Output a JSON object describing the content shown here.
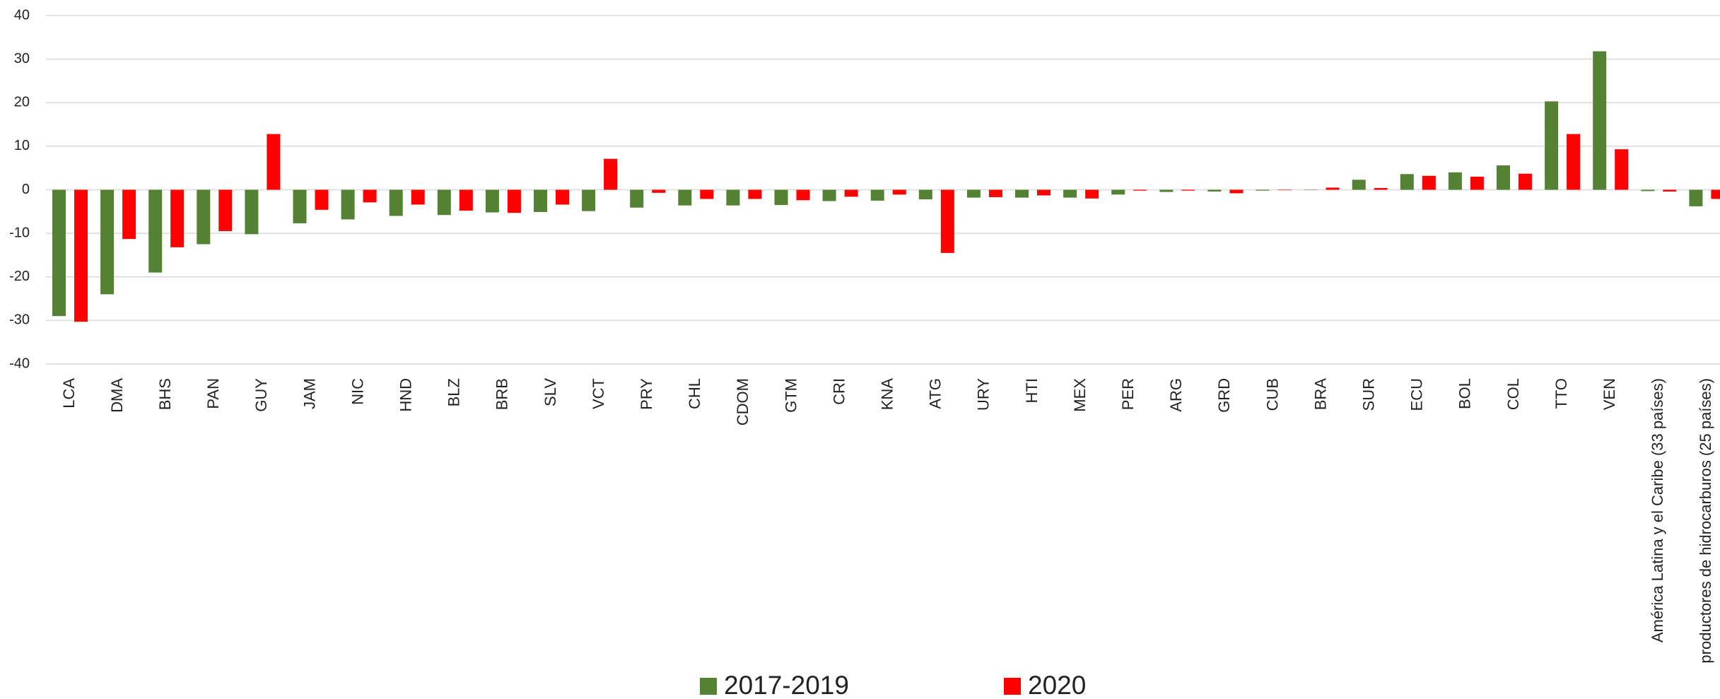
{
  "chart_data": {
    "type": "bar",
    "categories": [
      "LCA",
      "DMA",
      "BHS",
      "PAN",
      "GUY",
      "JAM",
      "NIC",
      "HND",
      "BLZ",
      "BRB",
      "SLV",
      "VCT",
      "PRY",
      "CHL",
      "CDOM",
      "GTM",
      "CRI",
      "KNA",
      "ATG",
      "URY",
      "HTI",
      "MEX",
      "PER",
      "ARG",
      "GRD",
      "CUB",
      "BRA",
      "SUR",
      "ECU",
      "BOL",
      "COL",
      "TTO",
      "VEN",
      "América Latina y el Caribe (33 países)",
      "productores de hidrocarburos (25 países)"
    ],
    "series": [
      {
        "name": "2017-2019",
        "color": "#548235",
        "values": [
          -29,
          -24,
          -19,
          -12.5,
          -10.2,
          -7.7,
          -6.8,
          -6,
          -5.8,
          -5.2,
          -5.1,
          -4.9,
          -4.1,
          -3.6,
          -3.6,
          -3.5,
          -2.6,
          -2.5,
          -2.2,
          -1.8,
          -1.8,
          -1.8,
          -1.1,
          -0.5,
          -0.4,
          -0.2,
          0,
          2.3,
          3.6,
          4,
          5.6,
          20.3,
          31.8,
          -0.3,
          -3.8
        ]
      },
      {
        "name": "2020",
        "color": "#ff0000",
        "values": [
          -30.3,
          -11.3,
          -13.2,
          -9.5,
          12.8,
          -4.6,
          -2.9,
          -3.4,
          -4.8,
          -5.3,
          -3.4,
          7.1,
          -0.7,
          -2.1,
          -2.1,
          -2.4,
          -1.6,
          -1.1,
          -14.5,
          -1.7,
          -1.3,
          -2,
          -0.2,
          -0.2,
          -0.8,
          -0.1,
          0.5,
          0.4,
          3.2,
          3,
          3.7,
          12.8,
          9.3,
          -0.4,
          -2.1
        ]
      }
    ],
    "ylim": [
      -40,
      40
    ],
    "yticks": [
      -40,
      -30,
      -20,
      -10,
      0,
      10,
      20,
      30,
      40
    ],
    "grid": true
  }
}
